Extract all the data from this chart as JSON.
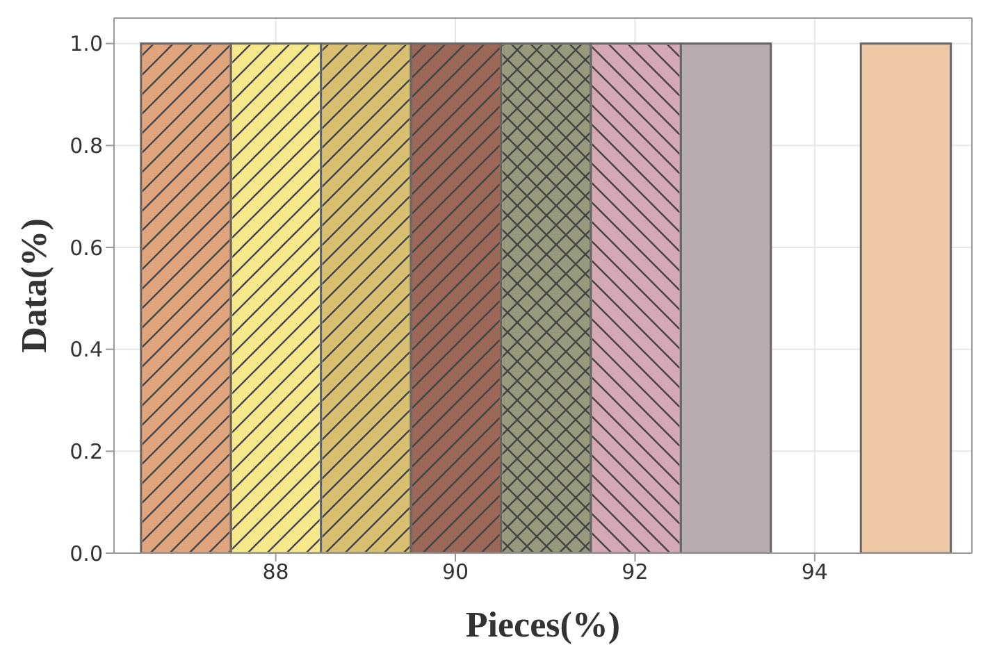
{
  "chart_data": {
    "type": "histogram",
    "xlabel": "Pieces(%)",
    "ylabel": "Data(%)",
    "bins": [
      86.5,
      87.5,
      88.5,
      89.5,
      90.5,
      91.5,
      92.5,
      93.5,
      94.5,
      95.5
    ],
    "values": [
      1.0,
      1.0,
      1.0,
      1.0,
      1.0,
      1.0,
      1.0,
      0,
      1.0
    ],
    "colors": [
      "#e0a47c",
      "#f8e88c",
      "#d8c070",
      "#9c6858",
      "#98987c",
      "#d4a8b4",
      "#b8acb0",
      "#ffffff",
      "#eec8a4"
    ],
    "xlim": [
      86.2,
      95.75
    ],
    "ylim": [
      0,
      1.05
    ],
    "xticks": [
      88,
      90,
      92,
      94
    ],
    "yticks": [
      {
        "value": 0,
        "label": "0.0"
      },
      {
        "value": 0.2,
        "label": "0.2"
      },
      {
        "value": 0.4,
        "label": "0.4"
      },
      {
        "value": 0.6,
        "label": "0.6"
      },
      {
        "value": 0.8,
        "label": "0.8"
      },
      {
        "value": 1.0,
        "label": "1.0"
      }
    ],
    "grid": true
  }
}
